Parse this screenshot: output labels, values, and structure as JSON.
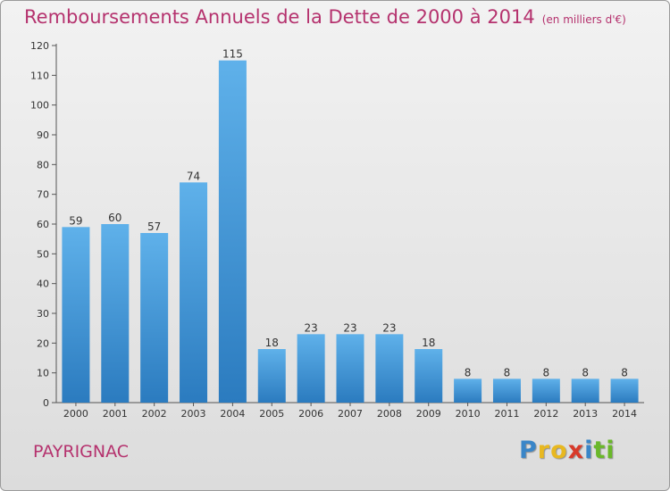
{
  "header": {
    "title": "Remboursements Annuels de la Dette de 2000 à 2014",
    "unit": "(en milliers d'€)"
  },
  "footer": {
    "commune": "PAYRIGNAC",
    "logo_letters": [
      {
        "char": "P",
        "color": "#3a86c8"
      },
      {
        "char": "r",
        "color": "#e8b820"
      },
      {
        "char": "o",
        "color": "#e8b820"
      },
      {
        "char": "x",
        "color": "#d83a2a"
      },
      {
        "char": "i",
        "color": "#3a86c8"
      },
      {
        "char": "t",
        "color": "#6ab82a"
      },
      {
        "char": "i",
        "color": "#6ab82a"
      }
    ]
  },
  "colors": {
    "bar_top": "#5fb1ea",
    "bar_bottom": "#2b7bbf",
    "title": "#b5326e"
  },
  "chart_data": {
    "type": "bar",
    "categories": [
      "2000",
      "2001",
      "2002",
      "2003",
      "2004",
      "2005",
      "2006",
      "2007",
      "2008",
      "2009",
      "2010",
      "2011",
      "2012",
      "2013",
      "2014"
    ],
    "values": [
      59,
      60,
      57,
      74,
      115,
      18,
      23,
      23,
      23,
      18,
      8,
      8,
      8,
      8,
      8
    ],
    "title": "Remboursements Annuels de la Dette de 2000 à 2014",
    "ylim": [
      0,
      120
    ],
    "yticks": [
      0,
      10,
      20,
      30,
      40,
      50,
      60,
      70,
      80,
      90,
      100,
      110,
      120
    ],
    "grid": false,
    "legend": "none"
  }
}
